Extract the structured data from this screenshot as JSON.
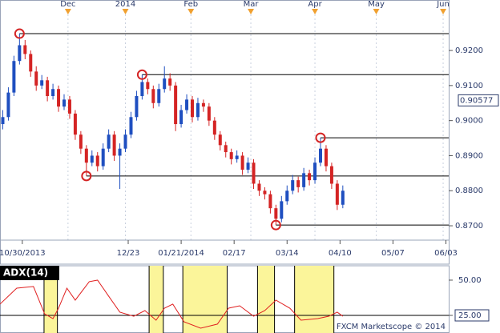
{
  "chart_data": [
    {
      "type": "candlestick",
      "x": [
        -7,
        -5,
        -3,
        -1,
        1,
        3,
        5,
        7,
        9,
        11,
        13,
        15,
        17,
        19,
        21,
        23,
        25,
        27,
        29,
        31,
        33,
        35,
        37,
        39,
        41,
        43,
        45,
        47,
        49,
        51,
        53,
        55,
        57,
        59,
        61,
        63,
        65,
        67,
        69,
        71,
        73,
        75,
        77,
        79,
        81,
        83,
        85,
        87,
        89,
        91,
        93,
        95,
        97,
        99,
        101,
        103,
        105,
        107,
        109,
        111,
        113,
        115
      ],
      "open": [
        0.899,
        0.901,
        0.908,
        0.917,
        0.9215,
        0.919,
        0.914,
        0.91,
        0.9115,
        0.907,
        0.909,
        0.904,
        0.906,
        0.902,
        0.896,
        0.892,
        0.888,
        0.89,
        0.887,
        0.892,
        0.896,
        0.89,
        0.892,
        0.896,
        0.901,
        0.907,
        0.911,
        0.909,
        0.905,
        0.909,
        0.912,
        0.91,
        0.899,
        0.903,
        0.906,
        0.901,
        0.905,
        0.904,
        0.9,
        0.896,
        0.893,
        0.891,
        0.889,
        0.89,
        0.886,
        0.888,
        0.882,
        0.88,
        0.879,
        0.875,
        0.872,
        0.877,
        0.88,
        0.883,
        0.881,
        0.885,
        0.883,
        0.888,
        0.892,
        0.887,
        0.882,
        0.876
      ],
      "high": [
        0.903,
        0.9095,
        0.9185,
        0.9248,
        0.923,
        0.92,
        0.9155,
        0.913,
        0.9125,
        0.9105,
        0.91,
        0.9075,
        0.907,
        0.903,
        0.897,
        0.893,
        0.8915,
        0.891,
        0.8935,
        0.8975,
        0.897,
        0.8935,
        0.8975,
        0.9025,
        0.9085,
        0.9131,
        0.912,
        0.91,
        0.9105,
        0.9155,
        0.9135,
        0.911,
        0.9045,
        0.9075,
        0.907,
        0.9065,
        0.906,
        0.905,
        0.901,
        0.897,
        0.894,
        0.892,
        0.8915,
        0.891,
        0.8895,
        0.889,
        0.883,
        0.881,
        0.88,
        0.876,
        0.8785,
        0.8815,
        0.8845,
        0.884,
        0.8865,
        0.886,
        0.8895,
        0.8951,
        0.893,
        0.888,
        0.883,
        0.8815
      ],
      "low": [
        0.8975,
        0.9,
        0.907,
        0.916,
        0.9175,
        0.9125,
        0.9085,
        0.909,
        0.9055,
        0.906,
        0.9025,
        0.903,
        0.9005,
        0.8945,
        0.8905,
        0.8842,
        0.887,
        0.8855,
        0.886,
        0.891,
        0.8885,
        0.8805,
        0.891,
        0.895,
        0.9,
        0.906,
        0.9075,
        0.9035,
        0.904,
        0.908,
        0.9085,
        0.897,
        0.898,
        0.902,
        0.8995,
        0.9,
        0.9025,
        0.8985,
        0.8945,
        0.8915,
        0.8895,
        0.8875,
        0.888,
        0.8845,
        0.885,
        0.8805,
        0.8785,
        0.8775,
        0.8735,
        0.8702,
        0.871,
        0.876,
        0.879,
        0.8795,
        0.88,
        0.8815,
        0.882,
        0.887,
        0.8855,
        0.8805,
        0.8745,
        0.875
      ],
      "close": [
        0.901,
        0.908,
        0.917,
        0.9215,
        0.919,
        0.914,
        0.91,
        0.9115,
        0.907,
        0.909,
        0.904,
        0.906,
        0.902,
        0.896,
        0.892,
        0.888,
        0.89,
        0.887,
        0.892,
        0.896,
        0.89,
        0.892,
        0.896,
        0.901,
        0.907,
        0.911,
        0.909,
        0.905,
        0.909,
        0.912,
        0.91,
        0.899,
        0.903,
        0.906,
        0.901,
        0.905,
        0.904,
        0.9,
        0.896,
        0.893,
        0.891,
        0.889,
        0.89,
        0.886,
        0.888,
        0.882,
        0.88,
        0.879,
        0.875,
        0.872,
        0.877,
        0.88,
        0.883,
        0.881,
        0.885,
        0.883,
        0.888,
        0.892,
        0.887,
        0.882,
        0.876,
        0.88
      ],
      "up_color": "#1f4fc0",
      "down_color": "#d42424",
      "markers": [
        {
          "x": -1,
          "value": 0.9248
        },
        {
          "x": 43,
          "value": 0.9131
        },
        {
          "x": 107,
          "value": 0.8951
        },
        {
          "x": 23,
          "value": 0.8842
        },
        {
          "x": 91,
          "value": 0.8702
        }
      ],
      "marker_color": "#d42424",
      "last_price": 0.90577,
      "xlim": [
        -8,
        153
      ],
      "ylim": [
        0.8659,
        0.9344
      ],
      "xticks": [
        {
          "value": 0,
          "label": "10/30/2013"
        },
        {
          "value": 38,
          "label": "12/23"
        },
        {
          "value": 57,
          "label": "01/21/2014"
        },
        {
          "value": 76,
          "label": "02/17"
        },
        {
          "value": 95,
          "label": "03/14"
        },
        {
          "value": 114,
          "label": "04/10"
        },
        {
          "value": 133,
          "label": "05/07"
        },
        {
          "value": 152,
          "label": "06/03"
        }
      ],
      "x2ticks": [
        {
          "value": 16.4,
          "label": "Dec"
        },
        {
          "value": 37,
          "label": "2014"
        },
        {
          "value": 60.5,
          "label": "Feb"
        },
        {
          "value": 82,
          "label": "Mar"
        },
        {
          "value": 105,
          "label": "Apr"
        },
        {
          "value": 127,
          "label": "May"
        },
        {
          "value": 151,
          "label": "Jun"
        }
      ],
      "yticks": [
        {
          "value": 0.92,
          "label": "0.9200"
        },
        {
          "value": 0.91,
          "label": "0.9100"
        },
        {
          "value": 0.9,
          "label": "0.9000"
        },
        {
          "value": 0.89,
          "label": "0.8900"
        },
        {
          "value": 0.88,
          "label": "0.8800"
        },
        {
          "value": 0.87,
          "label": "0.8700"
        }
      ]
    },
    {
      "type": "line",
      "title": "ADX(14)",
      "x": [
        -8,
        -2,
        4,
        8,
        11,
        13,
        16,
        19,
        24,
        27,
        31,
        35,
        40,
        44,
        48,
        51,
        54,
        58,
        64,
        70,
        74,
        78,
        83,
        87,
        91,
        96,
        100,
        106,
        110,
        113,
        115
      ],
      "series": [
        {
          "name": "ADX",
          "color": "#e02020",
          "values": [
            33,
            44.3,
            45.5,
            26.1,
            22.7,
            30.1,
            44.3,
            35.8,
            48.9,
            50,
            38.6,
            27.3,
            24.4,
            28.4,
            21.6,
            30.1,
            33,
            20.5,
            15.9,
            18.8,
            30.1,
            31.8,
            24.4,
            28.4,
            35.8,
            30.1,
            21.6,
            22.7,
            24.4,
            27.3,
            24.4
          ]
        }
      ],
      "shaded": [
        [
          7.8,
          12.6
        ],
        [
          45.5,
          50.6
        ],
        [
          57.6,
          73.5
        ],
        [
          84.4,
          90.5
        ],
        [
          97.7,
          111.8
        ]
      ],
      "shade_color": "#fbf59a",
      "xlim": [
        -8,
        153
      ],
      "ylim": [
        12.5,
        60.2
      ],
      "yticks": [
        {
          "value": 50,
          "label": "50.00"
        },
        {
          "value": 25,
          "label": "25.00"
        }
      ],
      "credit": "FXCM Marketscope © 2014"
    }
  ]
}
